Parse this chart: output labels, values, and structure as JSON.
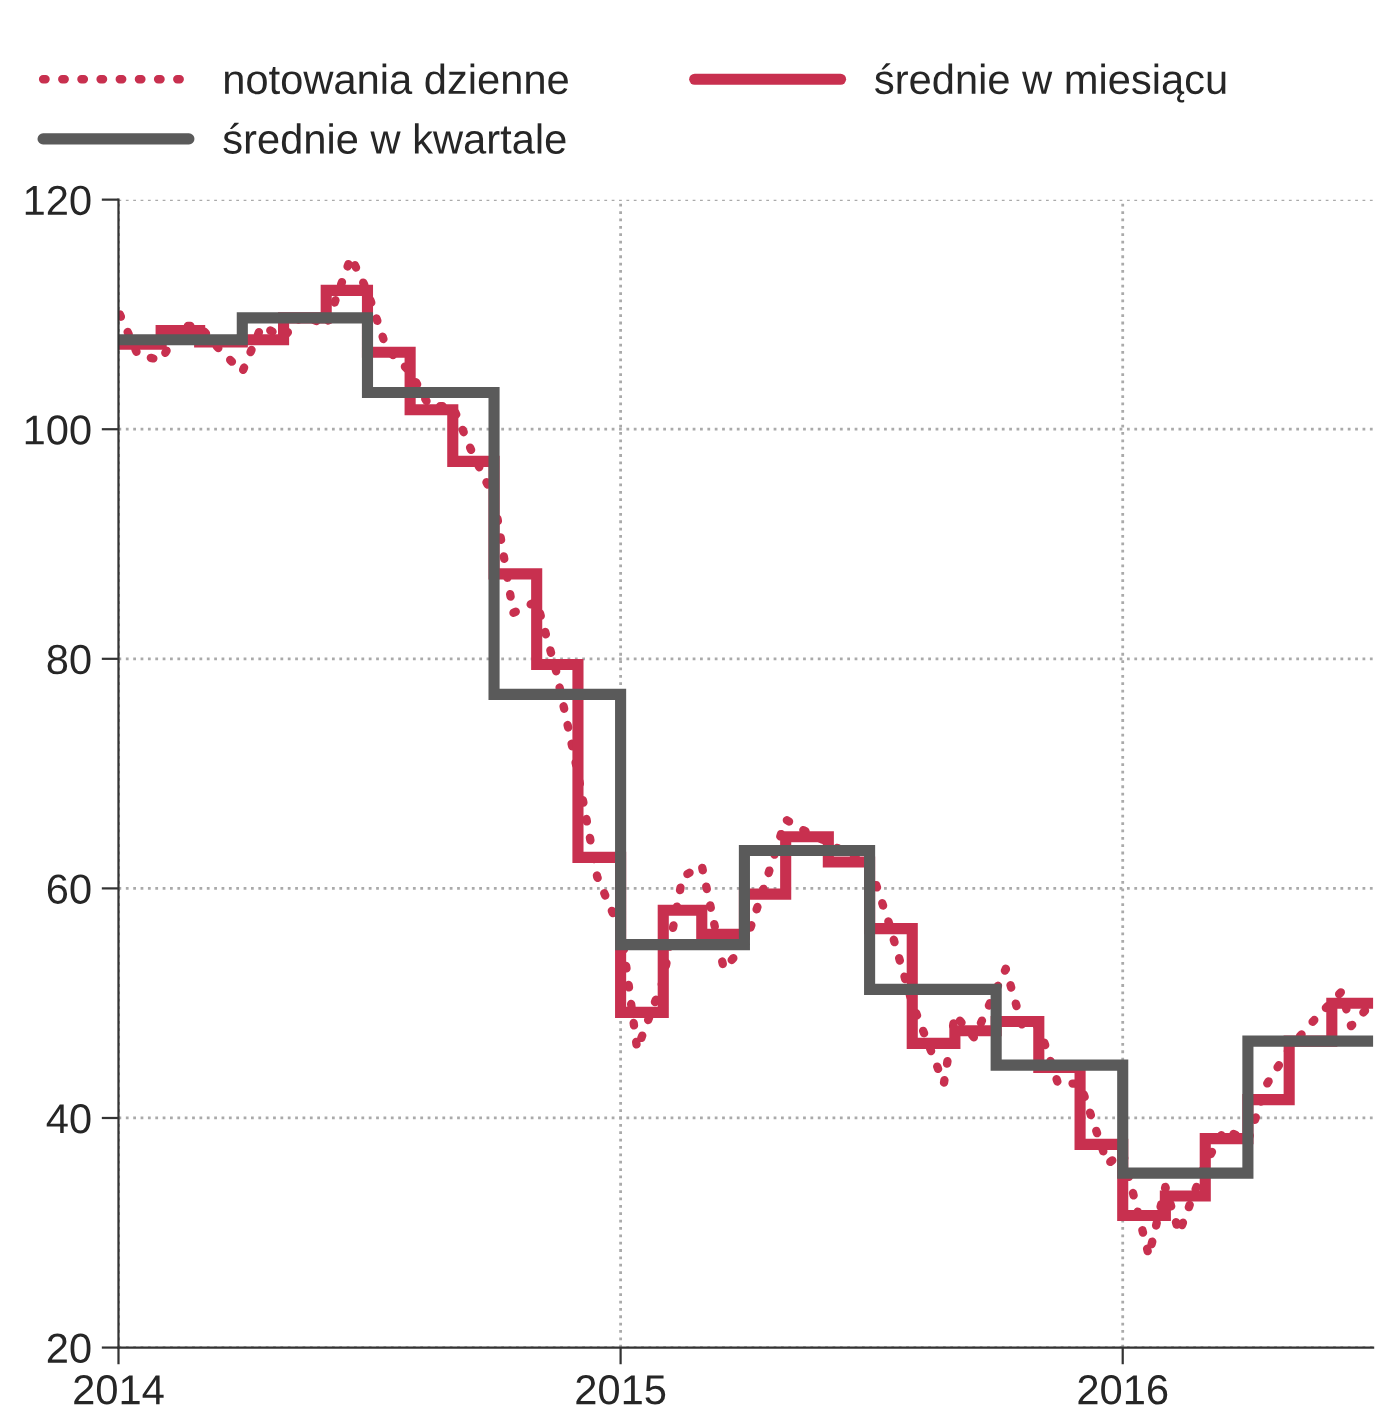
{
  "chart_data": {
    "type": "line",
    "xlim": [
      "2014-01-01",
      "2016-07-01"
    ],
    "xticks": [
      "2014",
      "2015",
      "2016"
    ],
    "ylim": [
      20,
      120
    ],
    "yticks": [
      20,
      40,
      60,
      80,
      100,
      120
    ],
    "grid": true,
    "legend": "top",
    "tick_labels": true,
    "series": [
      {
        "name": "notowania dzienne",
        "line_style": "dotted",
        "color": "#c8304f",
        "x": [
          "2014-01-02",
          "2014-01-15",
          "2014-02-01",
          "2014-02-15",
          "2014-03-01",
          "2014-03-15",
          "2014-04-01",
          "2014-04-15",
          "2014-05-01",
          "2014-05-15",
          "2014-06-01",
          "2014-06-19",
          "2014-07-01",
          "2014-07-15",
          "2014-08-01",
          "2014-08-15",
          "2014-09-01",
          "2014-09-15",
          "2014-10-01",
          "2014-10-15",
          "2014-11-01",
          "2014-11-15",
          "2014-12-01",
          "2014-12-15",
          "2015-01-02",
          "2015-01-13",
          "2015-02-01",
          "2015-02-15",
          "2015-03-01",
          "2015-03-17",
          "2015-04-01",
          "2015-04-15",
          "2015-05-01",
          "2015-05-15",
          "2015-06-01",
          "2015-06-15",
          "2015-07-01",
          "2015-07-15",
          "2015-08-01",
          "2015-08-24",
          "2015-09-01",
          "2015-09-15",
          "2015-10-08",
          "2015-10-20",
          "2015-11-01",
          "2015-11-15",
          "2015-12-01",
          "2015-12-21",
          "2016-01-01",
          "2016-01-20",
          "2016-02-01",
          "2016-02-11",
          "2016-03-01",
          "2016-03-15",
          "2016-04-01",
          "2016-04-15",
          "2016-05-01",
          "2016-05-15",
          "2016-06-08",
          "2016-06-15",
          "2016-06-30"
        ],
        "values": [
          110,
          106.5,
          106,
          109,
          109,
          107,
          105,
          109,
          108,
          110,
          109,
          115,
          112,
          107,
          105,
          102,
          102,
          98,
          94,
          84,
          85,
          79,
          70,
          61,
          56,
          46,
          52,
          61,
          62,
          53,
          55,
          60,
          66,
          65,
          64,
          63,
          62,
          57,
          50,
          43,
          49,
          47,
          53,
          48,
          48,
          43,
          43,
          36,
          37,
          28,
          34,
          30,
          36,
          39,
          38,
          43,
          46,
          48,
          51,
          48,
          50
        ]
      },
      {
        "name": "średnie w miesiącu",
        "type": "step",
        "color": "#c8304f",
        "x": [
          "2014-01",
          "2014-02",
          "2014-03",
          "2014-04",
          "2014-05",
          "2014-06",
          "2014-07",
          "2014-08",
          "2014-09",
          "2014-10",
          "2014-11",
          "2014-12",
          "2015-01",
          "2015-02",
          "2015-03",
          "2015-04",
          "2015-05",
          "2015-06",
          "2015-07",
          "2015-08",
          "2015-09",
          "2015-10",
          "2015-11",
          "2015-12",
          "2016-01",
          "2016-02",
          "2016-03",
          "2016-04",
          "2016-05",
          "2016-06",
          "2016-07"
        ],
        "values": [
          107.4,
          108.6,
          107.6,
          107.8,
          109.7,
          112.1,
          106.7,
          101.7,
          97.2,
          87.4,
          79.5,
          62.7,
          49.2,
          58.1,
          56.0,
          59.5,
          64.5,
          62.3,
          56.5,
          46.5,
          47.6,
          48.4,
          44.4,
          37.7,
          31.5,
          33.2,
          38.2,
          41.6,
          46.7,
          50.0,
          50.0
        ]
      },
      {
        "name": "średnie w kwartale",
        "type": "step",
        "color": "#5a5a5a",
        "x": [
          "2014-01",
          "2014-04",
          "2014-07",
          "2014-10",
          "2015-01",
          "2015-04",
          "2015-07",
          "2015-10",
          "2016-01",
          "2016-04",
          "2016-07"
        ],
        "values": [
          107.8,
          109.7,
          103.2,
          76.9,
          55.1,
          63.3,
          51.2,
          44.6,
          35.2,
          46.7,
          46.7
        ]
      }
    ]
  }
}
